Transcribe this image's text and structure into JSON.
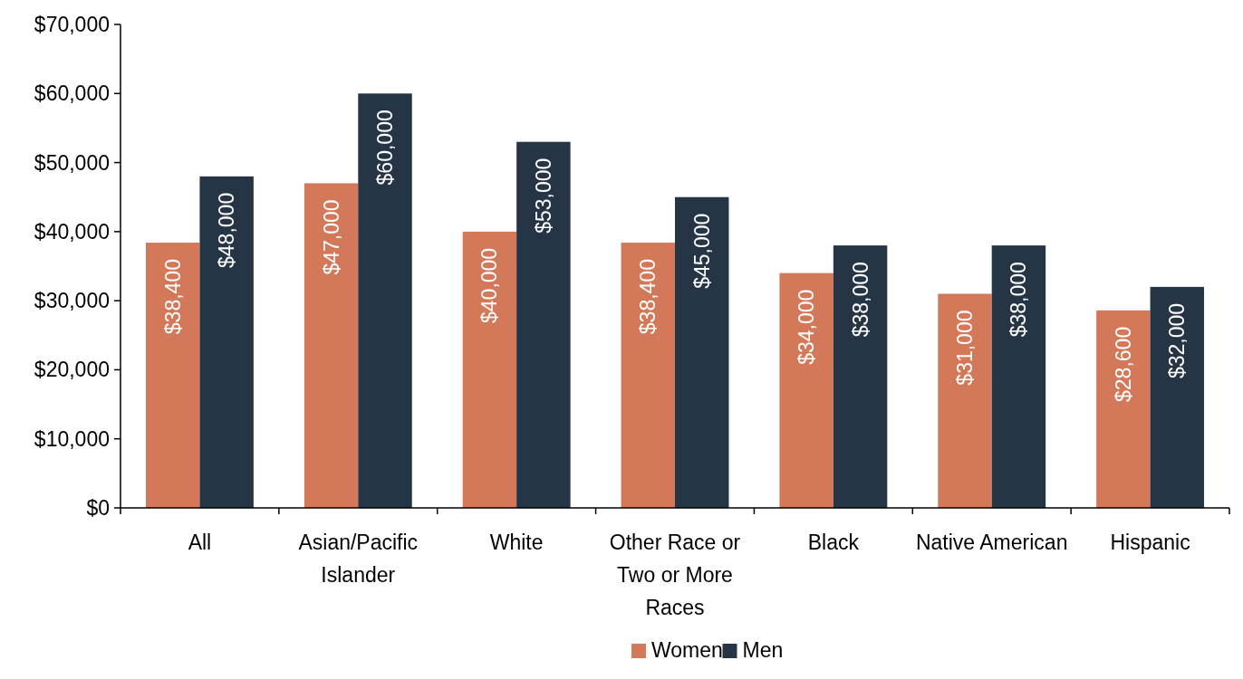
{
  "chart_data": {
    "type": "bar",
    "categories": [
      "All",
      "Asian/Pacific Islander",
      "White",
      "Other Race or Two or More Races",
      "Black",
      "Native American",
      "Hispanic"
    ],
    "series": [
      {
        "name": "Women",
        "color": "#d4785a",
        "values": [
          38400,
          47000,
          40000,
          38400,
          34000,
          31000,
          28600
        ],
        "value_labels": [
          "$38,400",
          "$47,000",
          "$40,000",
          "$38,400",
          "$34,000",
          "$31,000",
          "$28,600"
        ]
      },
      {
        "name": "Men",
        "color": "#263545",
        "values": [
          48000,
          60000,
          53000,
          45000,
          38000,
          38000,
          32000
        ],
        "value_labels": [
          "$48,000",
          "$60,000",
          "$53,000",
          "$45,000",
          "$38,000",
          "$38,000",
          "$32,000"
        ]
      }
    ],
    "ylim": [
      0,
      70000
    ],
    "yticks": [
      {
        "value": 0,
        "label": "$0"
      },
      {
        "value": 10000,
        "label": "$10,000"
      },
      {
        "value": 20000,
        "label": "$20,000"
      },
      {
        "value": 30000,
        "label": "$30,000"
      },
      {
        "value": 40000,
        "label": "$40,000"
      },
      {
        "value": 50000,
        "label": "$50,000"
      },
      {
        "value": 60000,
        "label": "$60,000"
      },
      {
        "value": 70000,
        "label": "$70,000"
      }
    ],
    "grid": false,
    "legend": "bottom"
  }
}
